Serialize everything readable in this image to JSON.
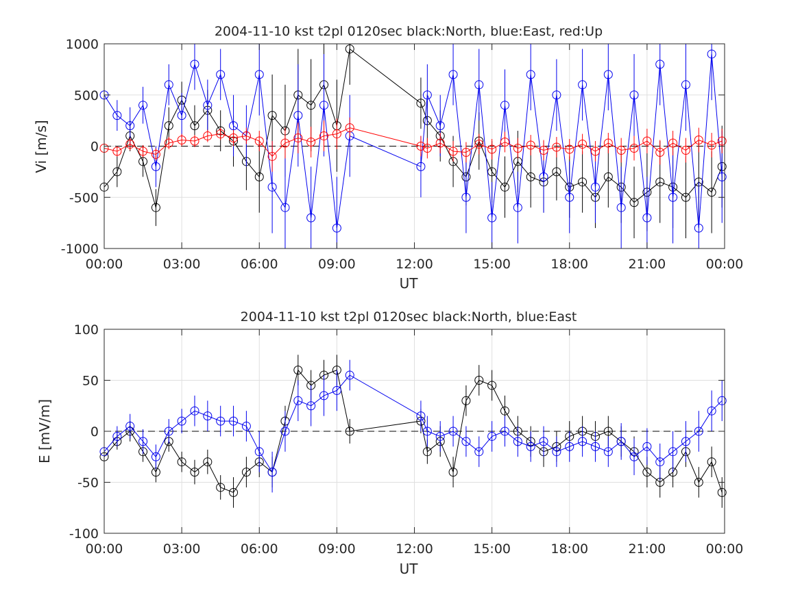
{
  "chart_data": [
    {
      "type": "scatter",
      "title": "2004-11-10 kst t2pl 0120sec black:North, blue:East, red:Up",
      "xlabel": "UT",
      "ylabel": "Vi [m/s]",
      "xlim": [
        0,
        24
      ],
      "ylim": [
        -1000,
        1000
      ],
      "x_tick_labels": [
        "00:00",
        "03:00",
        "06:00",
        "09:00",
        "12:00",
        "15:00",
        "18:00",
        "21:00",
        "00:00"
      ],
      "y_tick_labels": [
        "-1000",
        "-500",
        "0",
        "500",
        "1000"
      ],
      "y_ticks": [
        -1000,
        -500,
        0,
        500,
        1000
      ],
      "grid": true,
      "zero_line": "dashed",
      "marker": "open-circle-with-errorbar",
      "data_gap_hours": [
        9.5,
        12.25
      ],
      "series": [
        {
          "color": "#000000",
          "x": [
            0.0,
            0.5,
            1.0,
            1.5,
            2.0,
            2.5,
            3.0,
            3.5,
            4.0,
            4.5,
            5.0,
            5.5,
            6.0,
            6.5,
            7.0,
            7.5,
            8.0,
            8.5,
            9.0,
            9.5,
            12.25,
            12.5,
            13.0,
            13.5,
            14.0,
            14.5,
            15.0,
            15.5,
            16.0,
            16.5,
            17.0,
            17.5,
            18.0,
            18.5,
            19.0,
            19.5,
            20.0,
            20.5,
            21.0,
            21.5,
            22.0,
            22.5,
            23.0,
            23.5,
            23.9
          ],
          "y": [
            -400,
            -250,
            100,
            -150,
            -600,
            200,
            450,
            200,
            350,
            150,
            50,
            -150,
            -300,
            300,
            150,
            500,
            400,
            600,
            200,
            950,
            420,
            250,
            100,
            -150,
            -300,
            50,
            -250,
            -400,
            -150,
            -300,
            -350,
            -250,
            -400,
            -350,
            -500,
            -300,
            -400,
            -550,
            -450,
            -350,
            -400,
            -500,
            -350,
            -450,
            -200
          ],
          "err": [
            140,
            150,
            150,
            150,
            180,
            180,
            180,
            200,
            200,
            200,
            250,
            280,
            350,
            400,
            450,
            450,
            450,
            450,
            450,
            350,
            250,
            250,
            250,
            250,
            280,
            280,
            300,
            300,
            300,
            300,
            300,
            280,
            300,
            300,
            300,
            300,
            350,
            350,
            380,
            400,
            400,
            400,
            400,
            400,
            400
          ]
        },
        {
          "color": "#0000ee",
          "x": [
            0.0,
            0.5,
            1.0,
            1.5,
            2.0,
            2.5,
            3.0,
            3.5,
            4.0,
            4.5,
            5.0,
            5.5,
            6.0,
            6.5,
            7.0,
            7.5,
            8.0,
            8.5,
            9.0,
            9.5,
            12.25,
            12.5,
            13.0,
            13.5,
            14.0,
            14.5,
            15.0,
            15.5,
            16.0,
            16.5,
            17.0,
            17.5,
            18.0,
            18.5,
            19.0,
            19.5,
            20.0,
            20.5,
            21.0,
            21.5,
            22.0,
            22.5,
            23.0,
            23.5,
            23.9
          ],
          "y": [
            500,
            300,
            200,
            400,
            -200,
            600,
            300,
            800,
            400,
            700,
            200,
            100,
            700,
            -400,
            -600,
            300,
            -700,
            400,
            -800,
            100,
            -200,
            500,
            200,
            700,
            -500,
            600,
            -700,
            400,
            -600,
            700,
            -300,
            500,
            -500,
            600,
            -400,
            700,
            -600,
            500,
            -700,
            800,
            -500,
            600,
            -800,
            900,
            -300
          ],
          "err": [
            150,
            150,
            180,
            180,
            200,
            200,
            220,
            250,
            250,
            250,
            300,
            300,
            400,
            450,
            500,
            500,
            500,
            500,
            500,
            400,
            300,
            300,
            300,
            300,
            350,
            350,
            350,
            350,
            350,
            350,
            350,
            350,
            350,
            350,
            350,
            350,
            400,
            400,
            400,
            400,
            450,
            450,
            450,
            450,
            450
          ]
        },
        {
          "color": "#ff0000",
          "x": [
            0.0,
            0.5,
            1.0,
            1.5,
            2.0,
            2.5,
            3.0,
            3.5,
            4.0,
            4.5,
            5.0,
            5.5,
            6.0,
            6.5,
            7.0,
            7.5,
            8.0,
            8.5,
            9.0,
            9.5,
            12.25,
            12.5,
            13.0,
            13.5,
            14.0,
            14.5,
            15.0,
            15.5,
            16.0,
            16.5,
            17.0,
            17.5,
            18.0,
            18.5,
            19.0,
            19.5,
            20.0,
            20.5,
            21.0,
            21.5,
            22.0,
            22.5,
            23.0,
            23.5,
            23.9
          ],
          "y": [
            -20,
            -50,
            20,
            -50,
            -80,
            30,
            60,
            50,
            100,
            120,
            80,
            100,
            50,
            -100,
            30,
            80,
            40,
            100,
            120,
            180,
            0,
            -20,
            30,
            -50,
            -60,
            20,
            -30,
            40,
            -20,
            10,
            -40,
            -10,
            -30,
            20,
            -50,
            30,
            -40,
            -20,
            50,
            -60,
            30,
            -40,
            60,
            10,
            50
          ],
          "err": [
            50,
            50,
            60,
            60,
            60,
            60,
            60,
            60,
            60,
            60,
            80,
            80,
            100,
            150,
            150,
            150,
            150,
            150,
            150,
            100,
            100,
            100,
            100,
            100,
            100,
            100,
            100,
            100,
            100,
            100,
            100,
            100,
            100,
            100,
            100,
            100,
            120,
            120,
            120,
            120,
            120,
            120,
            120,
            120,
            120
          ]
        }
      ]
    },
    {
      "type": "scatter",
      "title": "2004-11-10 kst t2pl 0120sec black:North, blue:East",
      "xlabel": "UT",
      "ylabel": "E [mV/m]",
      "xlim": [
        0,
        24
      ],
      "ylim": [
        -100,
        100
      ],
      "x_tick_labels": [
        "00:00",
        "03:00",
        "06:00",
        "09:00",
        "12:00",
        "15:00",
        "18:00",
        "21:00",
        "00:00"
      ],
      "y_tick_labels": [
        "-100",
        "-50",
        "0",
        "50",
        "100"
      ],
      "y_ticks": [
        -100,
        -50,
        0,
        50,
        100
      ],
      "grid": true,
      "zero_line": "dashed",
      "marker": "open-circle-with-errorbar",
      "data_gap_hours": [
        9.5,
        12.25
      ],
      "series": [
        {
          "color": "#000000",
          "x": [
            0.0,
            0.5,
            1.0,
            1.5,
            2.0,
            2.5,
            3.0,
            3.5,
            4.0,
            4.5,
            5.0,
            5.5,
            6.0,
            6.5,
            7.0,
            7.5,
            8.0,
            8.5,
            9.0,
            9.5,
            12.25,
            12.5,
            13.0,
            13.5,
            14.0,
            14.5,
            15.0,
            15.5,
            16.0,
            16.5,
            17.0,
            17.5,
            18.0,
            18.5,
            19.0,
            19.5,
            20.0,
            20.5,
            21.0,
            21.5,
            22.0,
            22.5,
            23.0,
            23.5,
            23.9
          ],
          "y": [
            -25,
            -10,
            0,
            -20,
            -40,
            -10,
            -30,
            -40,
            -30,
            -55,
            -60,
            -40,
            -30,
            -40,
            10,
            60,
            45,
            55,
            60,
            0,
            10,
            -20,
            -10,
            -40,
            30,
            50,
            45,
            20,
            0,
            -10,
            -20,
            -15,
            -5,
            0,
            -5,
            0,
            -10,
            -20,
            -40,
            -50,
            -40,
            -20,
            -50,
            -30,
            -60
          ],
          "err": [
            8,
            8,
            10,
            10,
            10,
            10,
            10,
            12,
            12,
            12,
            15,
            15,
            15,
            15,
            15,
            15,
            15,
            15,
            15,
            12,
            12,
            12,
            15,
            15,
            15,
            15,
            15,
            15,
            15,
            15,
            15,
            15,
            15,
            15,
            15,
            15,
            15,
            15,
            15,
            15,
            15,
            15,
            15,
            15,
            15
          ]
        },
        {
          "color": "#0000ee",
          "x": [
            0.0,
            0.5,
            1.0,
            1.5,
            2.0,
            2.5,
            3.0,
            3.5,
            4.0,
            4.5,
            5.0,
            5.5,
            6.0,
            6.5,
            7.0,
            7.5,
            8.0,
            8.5,
            9.0,
            9.5,
            12.25,
            12.5,
            13.0,
            13.5,
            14.0,
            14.5,
            15.0,
            15.5,
            16.0,
            16.5,
            17.0,
            17.5,
            18.0,
            18.5,
            19.0,
            19.5,
            20.0,
            20.5,
            21.0,
            21.5,
            22.0,
            22.5,
            23.0,
            23.5,
            23.9
          ],
          "y": [
            -20,
            -5,
            5,
            -10,
            -25,
            0,
            10,
            20,
            15,
            10,
            10,
            5,
            -20,
            -40,
            0,
            30,
            25,
            35,
            40,
            55,
            15,
            0,
            -5,
            0,
            -10,
            -20,
            -5,
            0,
            -10,
            -15,
            -10,
            -20,
            -15,
            -10,
            -15,
            -20,
            -10,
            -25,
            -15,
            -30,
            -20,
            -10,
            0,
            20,
            30
          ],
          "err": [
            10,
            10,
            12,
            12,
            12,
            12,
            12,
            15,
            15,
            15,
            15,
            15,
            20,
            20,
            20,
            20,
            20,
            20,
            20,
            15,
            15,
            15,
            15,
            15,
            15,
            15,
            15,
            15,
            15,
            15,
            15,
            15,
            15,
            15,
            15,
            15,
            18,
            18,
            18,
            18,
            20,
            20,
            20,
            20,
            20
          ]
        }
      ]
    }
  ]
}
